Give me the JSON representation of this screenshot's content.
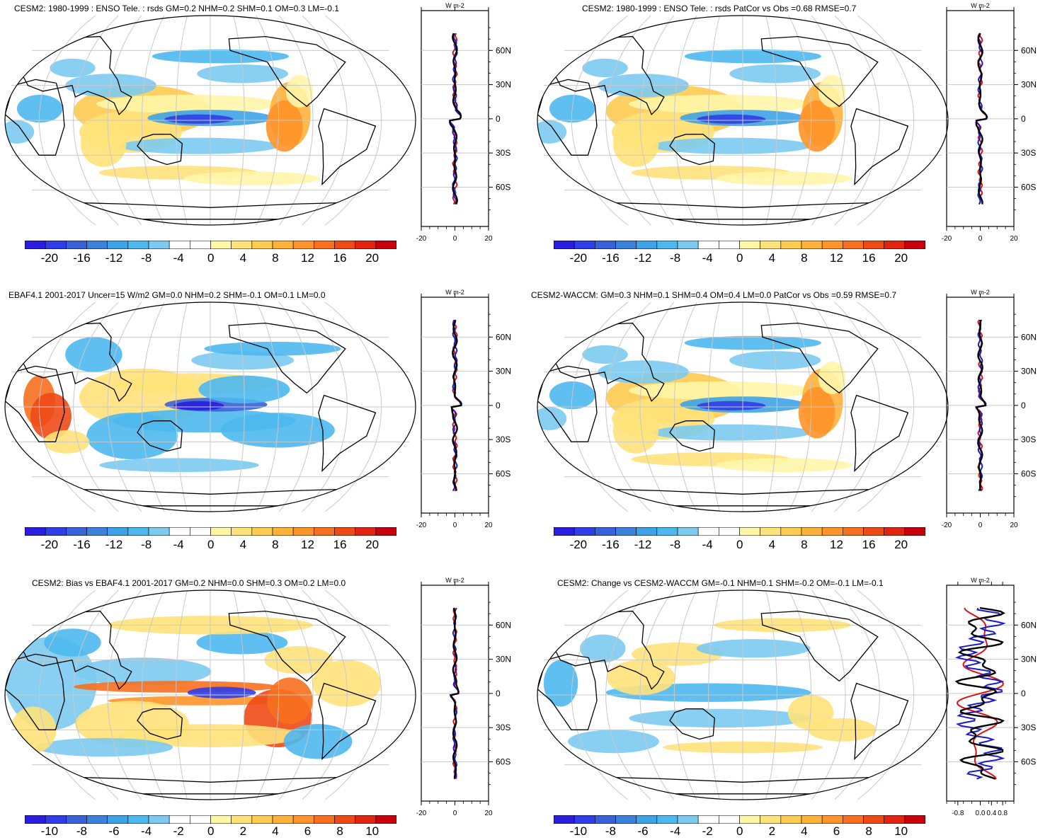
{
  "figure": {
    "unit_label": "W m-2",
    "colors": [
      "#2a1ee0",
      "#2f3ee6",
      "#3a62d8",
      "#3b82dd",
      "#3ea3e6",
      "#4db8ee",
      "#7ccaf0",
      "#ffffff",
      "#ffffff",
      "#fff6a8",
      "#ffe27a",
      "#ffcb50",
      "#ffb13a",
      "#ff942a",
      "#f7701f",
      "#ee4a16",
      "#e02410",
      "#c8000c"
    ],
    "line_colors": {
      "model": "#e01010",
      "obs": "#1a1acc",
      "third": "#000000"
    },
    "land_outline_color": "#000000",
    "grid_color": "#c8c8c8"
  },
  "chart_data": [
    {
      "id": "p1",
      "type": "heatmap",
      "title": "CESM2: 1980-1999 : ENSO Tele. : rsds GM=0.2 NHM=0.2 SHM=0.1 OM=0.3 LM=-0.1",
      "pattern": "enso",
      "colorbar": {
        "ticks": [
          "-20",
          "-16",
          "-12",
          "-8",
          "-4",
          "0",
          "4",
          "8",
          "12",
          "16",
          "20"
        ]
      },
      "profile": {
        "xlim": [
          -20,
          20
        ],
        "xticks": [
          "-20",
          "0",
          "20"
        ],
        "ylabels": [
          "60N",
          "30N",
          "0",
          "30S",
          "60S"
        ],
        "amp": 3
      }
    },
    {
      "id": "p2",
      "type": "heatmap",
      "title": "CESM2: 1980-1999 : ENSO Tele. : rsds PatCor vs Obs =0.68 RMSE=0.7",
      "pattern": "enso",
      "colorbar": {
        "ticks": [
          "-20",
          "-16",
          "-12",
          "-8",
          "-4",
          "0",
          "4",
          "8",
          "12",
          "16",
          "20"
        ]
      },
      "profile": {
        "xlim": [
          -20,
          20
        ],
        "xticks": [
          "-20",
          "0",
          "20"
        ],
        "ylabels": [
          "60N",
          "30N",
          "0",
          "30S",
          "60S"
        ],
        "amp": 3
      }
    },
    {
      "id": "p3",
      "type": "heatmap",
      "title": "EBAF4.1 2001-2017 Uncer=15 W/m2 GM=0.0 NHM=0.2 SHM=-0.1 OM=0.1 LM=0.0",
      "pattern": "obs",
      "colorbar": {
        "ticks": [
          "-20",
          "-16",
          "-12",
          "-8",
          "-4",
          "0",
          "4",
          "8",
          "12",
          "16",
          "20"
        ]
      },
      "profile": {
        "xlim": [
          -20,
          20
        ],
        "xticks": [
          "-20",
          "0",
          "20"
        ],
        "ylabels": [
          "60N",
          "30N",
          "0",
          "30S",
          "60S"
        ],
        "amp": 3
      }
    },
    {
      "id": "p4",
      "type": "heatmap",
      "title": "CESM2-WACCM: GM=0.3 NHM=0.1 SHM=0.4 OM=0.4 LM=0.0 PatCor vs Obs =0.59 RMSE=0.7",
      "pattern": "enso",
      "colorbar": {
        "ticks": [
          "-20",
          "-16",
          "-12",
          "-8",
          "-4",
          "0",
          "4",
          "8",
          "12",
          "16",
          "20"
        ]
      },
      "profile": {
        "xlim": [
          -20,
          20
        ],
        "xticks": [
          "-20",
          "0",
          "20"
        ],
        "ylabels": [
          "60N",
          "30N",
          "0",
          "30S",
          "60S"
        ],
        "amp": 3
      }
    },
    {
      "id": "p5",
      "type": "heatmap",
      "title": "CESM2: Bias vs EBAF4.1 2001-2017 GM=0.2 NHM=0.0 SHM=0.3 OM=0.2 LM=0.0",
      "pattern": "bias",
      "colorbar": {
        "ticks": [
          "-10",
          "-8",
          "-6",
          "-4",
          "-2",
          "0",
          "2",
          "4",
          "6",
          "8",
          "10"
        ]
      },
      "profile": {
        "xlim": [
          -20,
          20
        ],
        "xticks": [
          "-20",
          "0",
          "20"
        ],
        "ylabels": [
          "60N",
          "30N",
          "0",
          "30S",
          "60S"
        ],
        "amp": 2.5
      }
    },
    {
      "id": "p6",
      "type": "heatmap",
      "title": "CESM2: Change vs CESM2-WACCM GM=-0.1 NHM=0.1 SHM=-0.2 OM=-0.1 LM=-0.1",
      "pattern": "change",
      "colorbar": {
        "ticks": [
          "-10",
          "-8",
          "-6",
          "-4",
          "-2",
          "0",
          "2",
          "4",
          "6",
          "8",
          "10"
        ]
      },
      "profile": {
        "xlim": [
          -1.2,
          1.2
        ],
        "xticks": [
          "-0.8",
          "0.0",
          "0.4",
          "0.8"
        ],
        "ylabels": [
          "60N",
          "30N",
          "0",
          "30S",
          "60S"
        ],
        "amp": 0.9
      }
    }
  ]
}
